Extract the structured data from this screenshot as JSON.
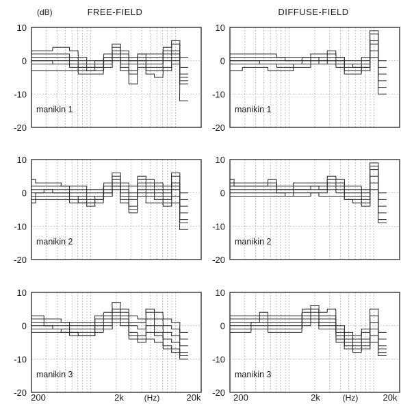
{
  "figure": {
    "columns": [
      "FREE-FIELD",
      "DIFFUSE-FIELD"
    ],
    "y_unit": "(dB)",
    "x_unit": "(Hz)",
    "y_ticks": [
      "10",
      "0",
      "-10",
      "-20"
    ],
    "x_ticks": [
      "200",
      "2k",
      "20k"
    ]
  },
  "chart_data": {
    "type": "line",
    "title": "",
    "xscale": "log",
    "xlim": [
      200,
      20000
    ],
    "ylim": [
      -20,
      10
    ],
    "xlabel": "(Hz)",
    "ylabel": "(dB)",
    "grid": true,
    "band_centers_hz": [
      200,
      250,
      315,
      400,
      500,
      630,
      800,
      1000,
      1250,
      1600,
      2000,
      2500,
      3150,
      4000,
      5000,
      6300,
      8000,
      10000,
      12500
    ],
    "panels": [
      {
        "column": "FREE-FIELD",
        "label": "manikin 1",
        "series": [
          {
            "values": [
              3,
              3,
              3,
              4,
              4,
              3,
              1,
              0,
              0,
              1,
              5,
              3,
              1,
              2,
              2,
              2,
              4,
              6,
              1
            ]
          },
          {
            "values": [
              2,
              2,
              2,
              2,
              2,
              1,
              0,
              -1,
              0,
              2,
              4,
              2,
              0,
              2,
              1,
              1,
              3,
              5,
              -2
            ]
          },
          {
            "values": [
              1,
              1,
              1,
              1,
              1,
              0,
              -1,
              -2,
              -1,
              1,
              3,
              1,
              0,
              1,
              0,
              0,
              2,
              3,
              -4
            ]
          },
          {
            "values": [
              0,
              0,
              0,
              0,
              0,
              -1,
              -2,
              -2,
              -2,
              0,
              2,
              0,
              -1,
              0,
              -1,
              -1,
              1,
              2,
              -5
            ]
          },
          {
            "values": [
              0,
              0,
              0,
              -1,
              -1,
              -1,
              -2,
              -3,
              -2,
              0,
              1,
              -1,
              -3,
              0,
              -2,
              -2,
              0,
              1,
              -6
            ]
          },
          {
            "values": [
              -1,
              -1,
              -1,
              -1,
              -1,
              -2,
              -3,
              -3,
              -3,
              -1,
              1,
              -2,
              -4,
              -1,
              -3,
              -3,
              -2,
              0,
              -7
            ]
          },
          {
            "values": [
              -3,
              -3,
              -3,
              -3,
              -3,
              -3,
              -4,
              -4,
              -4,
              -2,
              0,
              -3,
              -7,
              -2,
              -4,
              -5,
              -3,
              -1,
              -12
            ]
          }
        ]
      },
      {
        "column": "DIFFUSE-FIELD",
        "label": "manikin 1",
        "series": [
          {
            "values": [
              2,
              2,
              2,
              2,
              2,
              2,
              1,
              1,
              1,
              1,
              2,
              2,
              3,
              1,
              0,
              0,
              1,
              9,
              0
            ]
          },
          {
            "values": [
              1,
              1,
              1,
              1,
              1,
              1,
              1,
              0,
              0,
              1,
              1,
              1,
              2,
              1,
              -1,
              -1,
              0,
              8,
              -2
            ]
          },
          {
            "values": [
              0,
              0,
              0,
              0,
              0,
              0,
              0,
              0,
              0,
              0,
              1,
              0,
              1,
              0,
              -1,
              -2,
              -1,
              6,
              -4
            ]
          },
          {
            "values": [
              0,
              0,
              0,
              0,
              -1,
              -1,
              -1,
              -1,
              -1,
              0,
              0,
              0,
              0,
              0,
              -2,
              -2,
              -2,
              5,
              -6
            ]
          },
          {
            "values": [
              -1,
              -1,
              -1,
              -1,
              -1,
              -1,
              -2,
              -2,
              -1,
              -1,
              0,
              -1,
              0,
              -1,
              -3,
              -3,
              -2,
              3,
              -8
            ]
          },
          {
            "values": [
              -3,
              -3,
              -2,
              -2,
              -2,
              -3,
              -3,
              -3,
              -2,
              -2,
              -1,
              -1,
              -1,
              -2,
              -4,
              -4,
              -3,
              1,
              -10
            ]
          }
        ]
      },
      {
        "column": "FREE-FIELD",
        "label": "manikin 2",
        "series": [
          {
            "values": [
              4,
              3,
              3,
              3,
              2,
              2,
              2,
              1,
              1,
              3,
              6,
              3,
              2,
              5,
              4,
              3,
              2,
              6,
              0
            ]
          },
          {
            "values": [
              2,
              2,
              2,
              2,
              2,
              1,
              1,
              0,
              0,
              2,
              5,
              2,
              0,
              4,
              3,
              2,
              1,
              5,
              -2
            ]
          },
          {
            "values": [
              1,
              1,
              1,
              1,
              1,
              0,
              0,
              -1,
              -1,
              1,
              4,
              1,
              -1,
              3,
              2,
              1,
              0,
              3,
              -4
            ]
          },
          {
            "values": [
              0,
              0,
              1,
              0,
              0,
              -1,
              -1,
              -2,
              -1,
              0,
              3,
              0,
              -2,
              2,
              1,
              0,
              -1,
              2,
              -6
            ]
          },
          {
            "values": [
              -1,
              0,
              0,
              0,
              0,
              -1,
              -2,
              -3,
              -2,
              0,
              2,
              -1,
              -4,
              1,
              0,
              -1,
              -2,
              1,
              -8
            ]
          },
          {
            "values": [
              -2,
              -1,
              -1,
              -1,
              -1,
              -2,
              -3,
              -3,
              -2,
              -1,
              2,
              -2,
              -5,
              0,
              -1,
              -2,
              -3,
              -1,
              -9
            ]
          },
          {
            "values": [
              -3,
              -2,
              -2,
              -2,
              -2,
              -3,
              -3,
              -4,
              -3,
              -1,
              1,
              -3,
              -6,
              -1,
              -3,
              -3,
              -4,
              -3,
              -11
            ]
          }
        ]
      },
      {
        "column": "DIFFUSE-FIELD",
        "label": "manikin 2",
        "series": [
          {
            "values": [
              4,
              3,
              3,
              3,
              3,
              4,
              2,
              2,
              3,
              3,
              3,
              3,
              5,
              4,
              2,
              2,
              1,
              9,
              0
            ]
          },
          {
            "values": [
              3,
              2,
              2,
              2,
              2,
              3,
              1,
              1,
              2,
              2,
              2,
              2,
              4,
              3,
              1,
              1,
              0,
              8,
              -2
            ]
          },
          {
            "values": [
              2,
              2,
              2,
              2,
              2,
              2,
              1,
              1,
              1,
              1,
              2,
              1,
              3,
              2,
              0,
              0,
              -1,
              7,
              -4
            ]
          },
          {
            "values": [
              1,
              1,
              1,
              1,
              1,
              1,
              0,
              0,
              1,
              1,
              1,
              1,
              2,
              1,
              -1,
              -1,
              -2,
              5,
              -6
            ]
          },
          {
            "values": [
              0,
              0,
              0,
              0,
              0,
              0,
              0,
              -1,
              0,
              0,
              0,
              0,
              1,
              0,
              -2,
              -2,
              -3,
              3,
              -8
            ]
          },
          {
            "values": [
              -1,
              -1,
              -1,
              -1,
              -1,
              -1,
              -1,
              -1,
              -1,
              -1,
              0,
              -1,
              -1,
              -1,
              -2,
              -3,
              -4,
              1,
              -9
            ]
          }
        ]
      },
      {
        "column": "FREE-FIELD",
        "label": "manikin 3",
        "series": [
          {
            "values": [
              3,
              3,
              2,
              2,
              1,
              1,
              1,
              1,
              3,
              4,
              7,
              5,
              3,
              2,
              5,
              4,
              2,
              1,
              -2
            ]
          },
          {
            "values": [
              2,
              2,
              1,
              1,
              1,
              0,
              0,
              0,
              2,
              3,
              5,
              4,
              1,
              1,
              4,
              2,
              0,
              -1,
              -4
            ]
          },
          {
            "values": [
              1,
              1,
              0,
              0,
              0,
              -1,
              -1,
              -1,
              1,
              2,
              4,
              3,
              0,
              -1,
              2,
              0,
              -2,
              -3,
              -6
            ]
          },
          {
            "values": [
              0,
              0,
              0,
              -1,
              -1,
              -2,
              -2,
              -2,
              0,
              1,
              3,
              2,
              -2,
              -3,
              0,
              -2,
              -4,
              -5,
              -8
            ]
          },
          {
            "values": [
              -1,
              -1,
              -1,
              -1,
              -2,
              -2,
              -3,
              -3,
              -1,
              0,
              2,
              1,
              -3,
              -4,
              -2,
              -3,
              -6,
              -7,
              -9
            ]
          },
          {
            "values": [
              -2,
              -2,
              -2,
              -2,
              -2,
              -3,
              -3,
              -3,
              -2,
              -1,
              1,
              0,
              -4,
              -5,
              -4,
              -5,
              -7,
              -8,
              -10
            ]
          }
        ]
      },
      {
        "column": "DIFFUSE-FIELD",
        "label": "manikin 3",
        "series": [
          {
            "values": [
              3,
              3,
              3,
              3,
              4,
              3,
              3,
              3,
              3,
              5,
              6,
              4,
              5,
              0,
              -2,
              -3,
              -1,
              5,
              -2
            ]
          },
          {
            "values": [
              2,
              2,
              2,
              2,
              3,
              2,
              2,
              2,
              2,
              4,
              5,
              3,
              3,
              -1,
              -3,
              -4,
              -2,
              3,
              -4
            ]
          },
          {
            "values": [
              1,
              1,
              1,
              1,
              2,
              1,
              1,
              1,
              1,
              3,
              4,
              2,
              2,
              -2,
              -4,
              -5,
              -4,
              1,
              -6
            ]
          },
          {
            "values": [
              0,
              0,
              0,
              1,
              1,
              0,
              0,
              0,
              0,
              2,
              3,
              1,
              1,
              -3,
              -5,
              -6,
              -5,
              -1,
              -7
            ]
          },
          {
            "values": [
              -1,
              -1,
              -1,
              0,
              0,
              -1,
              -1,
              -1,
              -1,
              1,
              2,
              0,
              0,
              -4,
              -6,
              -7,
              -6,
              -3,
              -8
            ]
          },
          {
            "values": [
              -2,
              -2,
              -2,
              -1,
              -1,
              -2,
              -2,
              -2,
              -2,
              0,
              1,
              -1,
              -1,
              -5,
              -7,
              -8,
              -7,
              -5,
              -9
            ]
          }
        ]
      }
    ]
  }
}
